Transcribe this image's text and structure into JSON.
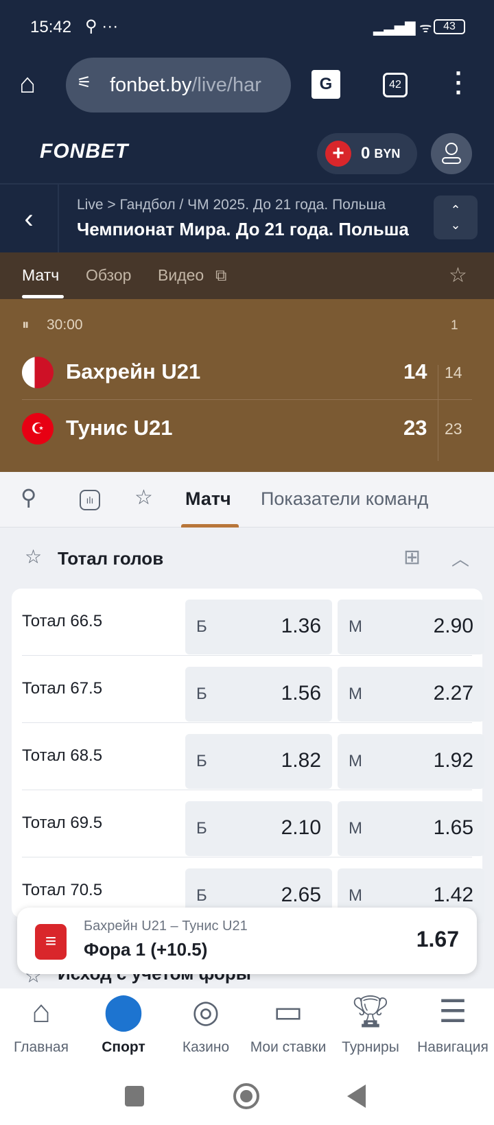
{
  "status": {
    "time": "15:42",
    "battery": "43"
  },
  "browser": {
    "url_host": "fonbet.by",
    "url_path": "/live/har",
    "tabs_count": "42"
  },
  "header": {
    "logo": "FONBET",
    "balance": "0",
    "currency": "BYN"
  },
  "breadcrumb": {
    "path": "Live > Гандбол / ЧМ 2025. До 21 года. Польша",
    "title": "Чемпионат Мира. До 21 года. Польша"
  },
  "match_tabs": [
    "Матч",
    "Обзор",
    "Видео"
  ],
  "score": {
    "time": "30:00",
    "period": "1",
    "teams": [
      {
        "name": "Бахрейн U21",
        "score": "14",
        "period_score": "14"
      },
      {
        "name": "Тунис U21",
        "score": "23",
        "period_score": "23"
      }
    ]
  },
  "tabs": [
    "Матч",
    "Показатели команд"
  ],
  "section": {
    "title": "Тотал голов",
    "next_title": "Исход с учетом форы"
  },
  "totals": [
    {
      "label": "Тотал 66.5",
      "over": "1.36",
      "under": "2.90"
    },
    {
      "label": "Тотал 67.5",
      "over": "1.56",
      "under": "2.27"
    },
    {
      "label": "Тотал 68.5",
      "over": "1.82",
      "under": "1.92"
    },
    {
      "label": "Тотал 69.5",
      "over": "2.10",
      "under": "1.65"
    },
    {
      "label": "Тотал 70.5",
      "over": "2.65",
      "under": "1.42"
    }
  ],
  "odd_labels": {
    "over": "Б",
    "under": "М"
  },
  "bet_slip": {
    "match": "Бахрейн U21 – Тунис U21",
    "bet": "Фора 1 (+10.5)",
    "odd": "1.67"
  },
  "nav": [
    {
      "label": "Главная",
      "icon": "home-icon"
    },
    {
      "label": "Спорт",
      "icon": "ball-icon"
    },
    {
      "label": "Казино",
      "icon": "casino-chip-icon"
    },
    {
      "label": "Мои ставки",
      "icon": "ticket-icon"
    },
    {
      "label": "Турниры",
      "icon": "trophy-icon"
    },
    {
      "label": "Навигация",
      "icon": "menu-search-icon"
    }
  ],
  "colors": {
    "header": "#1a2740",
    "accent": "#d9262b",
    "score_bg": "#7b5a33",
    "sport_active": "#1d74d0",
    "tab_indicator": "#b8763a"
  }
}
